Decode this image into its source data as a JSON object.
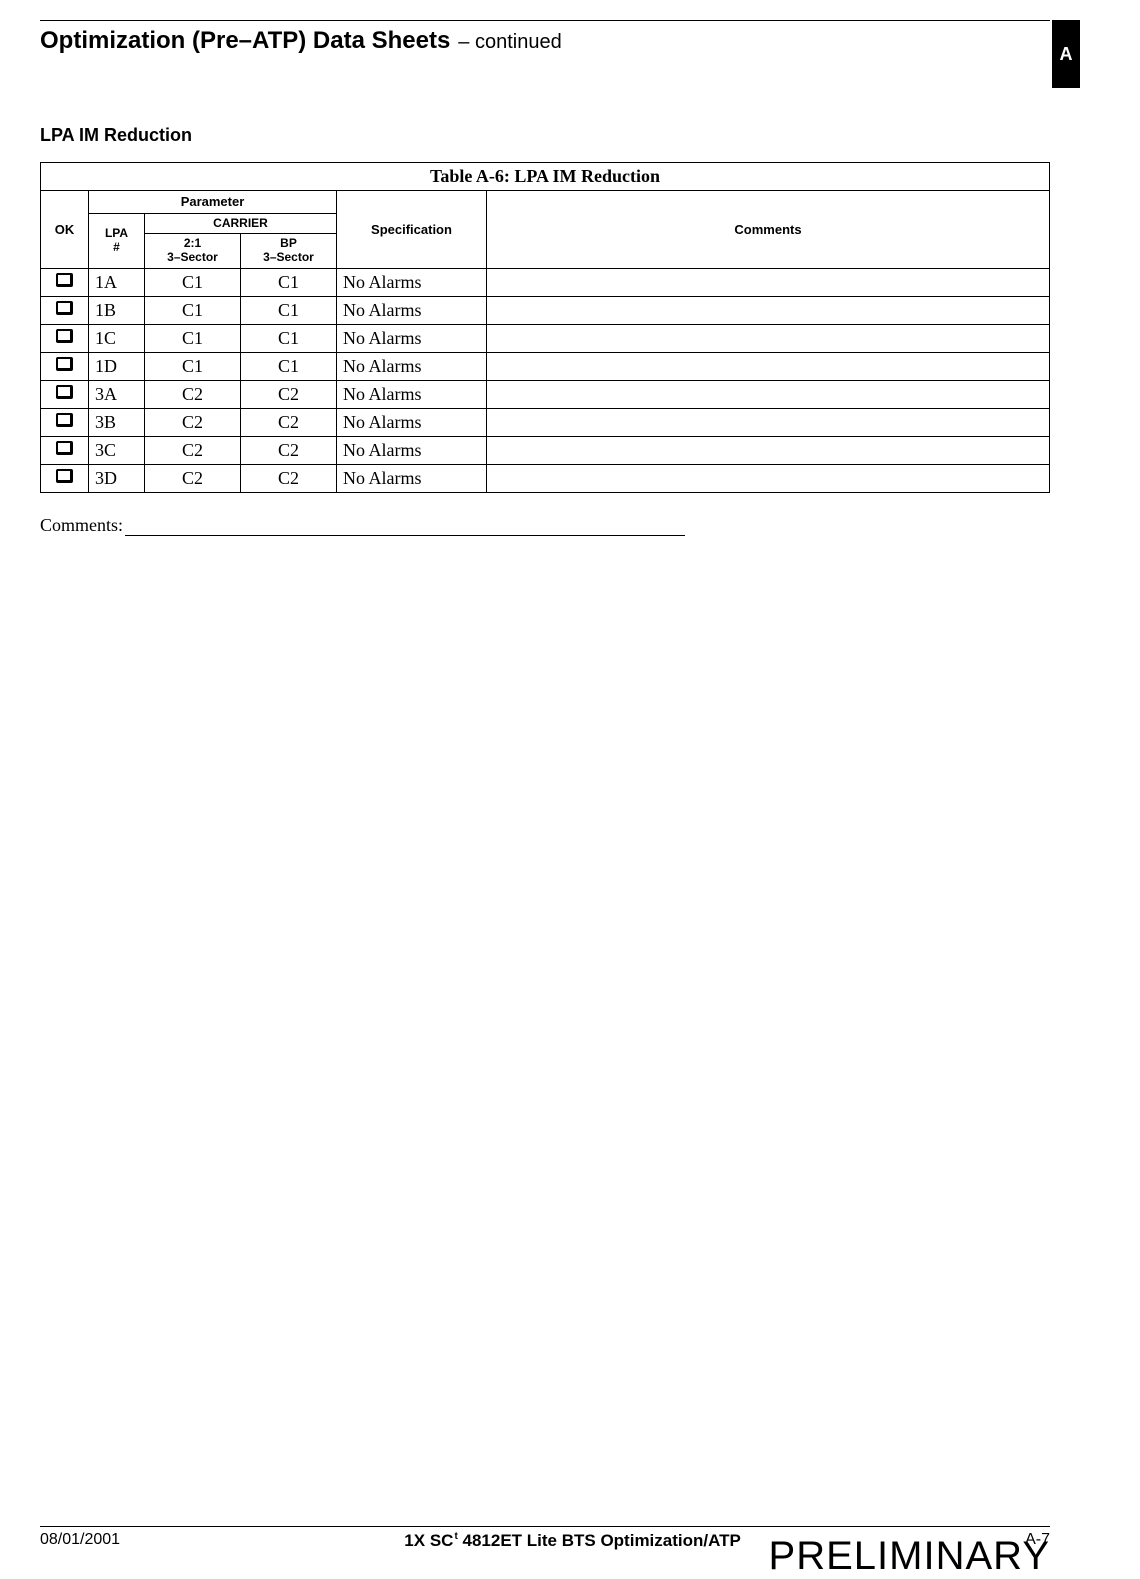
{
  "header": {
    "title_bold": "Optimization (Pre–ATP) Data Sheets",
    "title_cont": " – continued",
    "tab_letter": "A"
  },
  "section": {
    "heading": "LPA IM Reduction"
  },
  "table": {
    "title_bold": "Table A-6:",
    "title_rest": " LPA IM Reduction",
    "headers": {
      "ok": "OK",
      "parameter": "Parameter",
      "lpa": "LPA\n#",
      "carrier": "CARRIER",
      "c21": "2:1\n3–Sector",
      "bp": "BP\n3–Sector",
      "spec": "Specification",
      "comments": "Comments"
    },
    "rows": [
      {
        "lpa": "1A",
        "c1": "C1",
        "c2": "C1",
        "spec": "No Alarms",
        "comment": ""
      },
      {
        "lpa": "1B",
        "c1": "C1",
        "c2": "C1",
        "spec": "No Alarms",
        "comment": ""
      },
      {
        "lpa": "1C",
        "c1": "C1",
        "c2": "C1",
        "spec": "No Alarms",
        "comment": ""
      },
      {
        "lpa": "1D",
        "c1": "C1",
        "c2": "C1",
        "spec": "No Alarms",
        "comment": ""
      },
      {
        "lpa": "3A",
        "c1": "C2",
        "c2": "C2",
        "spec": "No Alarms",
        "comment": ""
      },
      {
        "lpa": "3B",
        "c1": "C2",
        "c2": "C2",
        "spec": "No Alarms",
        "comment": ""
      },
      {
        "lpa": "3C",
        "c1": "C2",
        "c2": "C2",
        "spec": "No Alarms",
        "comment": ""
      },
      {
        "lpa": "3D",
        "c1": "C2",
        "c2": "C2",
        "spec": "No Alarms",
        "comment": ""
      }
    ]
  },
  "comments_label": "Comments:",
  "footer": {
    "date": "08/01/2001",
    "center_pre": "1X SC",
    "center_tm": "t",
    "center_post": "4812ET Lite BTS Optimization/ATP",
    "page": "A-7",
    "watermark": "PRELIMINARY"
  }
}
